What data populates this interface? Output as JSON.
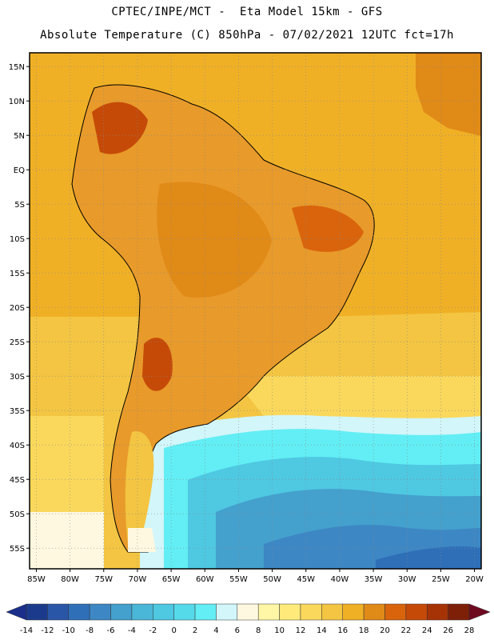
{
  "header": {
    "line1": "CPTEC/INPE/MCT -  Eta Model 15km - GFS",
    "line2": "Absolute Temperature (C) 850hPa - 07/02/2021 12UTC fct=17h"
  },
  "map": {
    "lon_range": [
      -86,
      -19
    ],
    "lat_range": [
      -58,
      17
    ],
    "lat_labels": [
      "15N",
      "10N",
      "5N",
      "EQ",
      "5S",
      "10S",
      "15S",
      "20S",
      "25S",
      "30S",
      "35S",
      "40S",
      "45S",
      "50S",
      "55S"
    ],
    "lat_values": [
      15,
      10,
      5,
      0,
      -5,
      -10,
      -15,
      -20,
      -25,
      -30,
      -35,
      -40,
      -45,
      -50,
      -55
    ],
    "lon_labels": [
      "85W",
      "80W",
      "75W",
      "70W",
      "65W",
      "60W",
      "55W",
      "50W",
      "45W",
      "40W",
      "35W",
      "30W",
      "25W",
      "20W"
    ],
    "lon_values": [
      -85,
      -80,
      -75,
      -70,
      -65,
      -60,
      -55,
      -50,
      -45,
      -40,
      -35,
      -30,
      -25,
      -20
    ],
    "land_color": "#E89A2A"
  },
  "colorbar": {
    "labels": [
      "-14",
      "-12",
      "-10",
      "-8",
      "-6",
      "-4",
      "-2",
      "0",
      "2",
      "4",
      "6",
      "8",
      "10",
      "12",
      "14",
      "16",
      "18",
      "20",
      "22",
      "24",
      "26",
      "28"
    ],
    "colors": [
      "#1B3A8C",
      "#2A56A8",
      "#2E6FB8",
      "#3D87C4",
      "#44A0CC",
      "#4AB6D8",
      "#4FC8E2",
      "#55DAEA",
      "#62EEF4",
      "#D2F6FA",
      "#FFF8E0",
      "#FFF7A6",
      "#FFEA7A",
      "#FAD85C",
      "#F3C542",
      "#F0B026",
      "#E08A18",
      "#D9640C",
      "#C54A08",
      "#A63306",
      "#7E2008"
    ],
    "low_arrow_color": "#1A2E8A",
    "high_arrow_color": "#6E0A20"
  }
}
